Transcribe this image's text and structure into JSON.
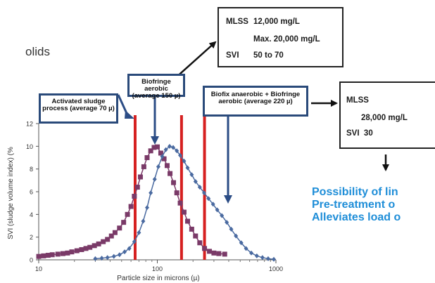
{
  "fragment_text": "olids",
  "box_top": {
    "line1_label": "MLSS",
    "line1_value": "12,000 mg/L",
    "line2_value": "Max. 20,000 mg/L",
    "line3_label": "SVI",
    "line3_value": "50 to 70"
  },
  "box_right": {
    "line1_label": "MLSS",
    "line2_value": "28,000 mg/L",
    "line3": "SVI  30"
  },
  "callouts": {
    "activated": "Activated sludge process (average 70 µ)",
    "biofringe": "Biofringe aerobic (average 150 µ)",
    "biofix": "Biofix anaerobic + Biofringe aerobic (average 220 µ)"
  },
  "blue_lines": [
    "Possibility of lin",
    "Pre-treatment o",
    "Alleviates load o"
  ],
  "colors": {
    "series_purple": "#7a3a68",
    "series_blue": "#4a6aa0",
    "red_line": "#d62020",
    "arrow_blue": "#2c4d86",
    "blue_text": "#1f8ed8"
  },
  "chart_data": {
    "type": "line",
    "xlabel": "Particle size in microns (µ)",
    "ylabel": "SVI (sludge volume index) (%",
    "x_scale": "log",
    "xlim": [
      10,
      1000
    ],
    "ylim": [
      0,
      12
    ],
    "x_ticks": [
      "10",
      "100",
      "1000"
    ],
    "y_ticks": [
      "0",
      "2",
      "4",
      "6",
      "8",
      "10",
      "12"
    ],
    "vertical_markers": [
      65,
      160,
      250
    ],
    "series": [
      {
        "marker": "square",
        "points": [
          [
            10,
            0.3
          ],
          [
            11,
            0.35
          ],
          [
            12,
            0.4
          ],
          [
            13,
            0.45
          ],
          [
            14.5,
            0.5
          ],
          [
            16,
            0.55
          ],
          [
            17.5,
            0.6
          ],
          [
            19,
            0.7
          ],
          [
            21,
            0.8
          ],
          [
            23,
            0.9
          ],
          [
            25,
            1.0
          ],
          [
            27,
            1.1
          ],
          [
            29.5,
            1.25
          ],
          [
            32,
            1.4
          ],
          [
            35,
            1.6
          ],
          [
            38,
            1.8
          ],
          [
            41,
            2.1
          ],
          [
            44,
            2.4
          ],
          [
            48,
            2.8
          ],
          [
            52,
            3.3
          ],
          [
            56,
            4.0
          ],
          [
            60,
            4.7
          ],
          [
            64,
            5.6
          ],
          [
            68,
            6.4
          ],
          [
            72,
            7.3
          ],
          [
            77,
            8.2
          ],
          [
            82,
            9.0
          ],
          [
            88,
            9.6
          ],
          [
            94,
            9.9
          ],
          [
            100,
            9.95
          ],
          [
            107,
            9.4
          ],
          [
            114,
            8.9
          ],
          [
            121,
            8.3
          ],
          [
            128,
            7.6
          ],
          [
            137,
            6.8
          ],
          [
            146,
            5.9
          ],
          [
            156,
            5.0
          ],
          [
            168,
            4.2
          ],
          [
            180,
            3.4
          ],
          [
            195,
            2.7
          ],
          [
            210,
            2.1
          ],
          [
            228,
            1.5
          ],
          [
            250,
            1.0
          ],
          [
            275,
            0.75
          ],
          [
            300,
            0.6
          ],
          [
            330,
            0.55
          ],
          [
            370,
            0.5
          ]
        ]
      },
      {
        "marker": "diamond",
        "points": [
          [
            30,
            0.1
          ],
          [
            34,
            0.15
          ],
          [
            38,
            0.2
          ],
          [
            43,
            0.3
          ],
          [
            48,
            0.45
          ],
          [
            53,
            0.7
          ],
          [
            58,
            1.0
          ],
          [
            64,
            1.6
          ],
          [
            70,
            2.4
          ],
          [
            76,
            3.4
          ],
          [
            82,
            4.6
          ],
          [
            88,
            5.9
          ],
          [
            95,
            7.1
          ],
          [
            102,
            8.2
          ],
          [
            110,
            9.1
          ],
          [
            118,
            9.7
          ],
          [
            127,
            10.0
          ],
          [
            136,
            9.9
          ],
          [
            146,
            9.6
          ],
          [
            156,
            9.2
          ],
          [
            168,
            8.7
          ],
          [
            180,
            8.1
          ],
          [
            195,
            7.5
          ],
          [
            210,
            6.9
          ],
          [
            228,
            6.4
          ],
          [
            248,
            5.9
          ],
          [
            270,
            5.4
          ],
          [
            295,
            4.9
          ],
          [
            320,
            4.4
          ],
          [
            350,
            3.9
          ],
          [
            385,
            3.3
          ],
          [
            420,
            2.7
          ],
          [
            460,
            2.1
          ],
          [
            510,
            1.5
          ],
          [
            560,
            1.0
          ],
          [
            620,
            0.6
          ],
          [
            690,
            0.35
          ],
          [
            770,
            0.2
          ],
          [
            860,
            0.1
          ],
          [
            960,
            0.05
          ]
        ]
      }
    ]
  }
}
